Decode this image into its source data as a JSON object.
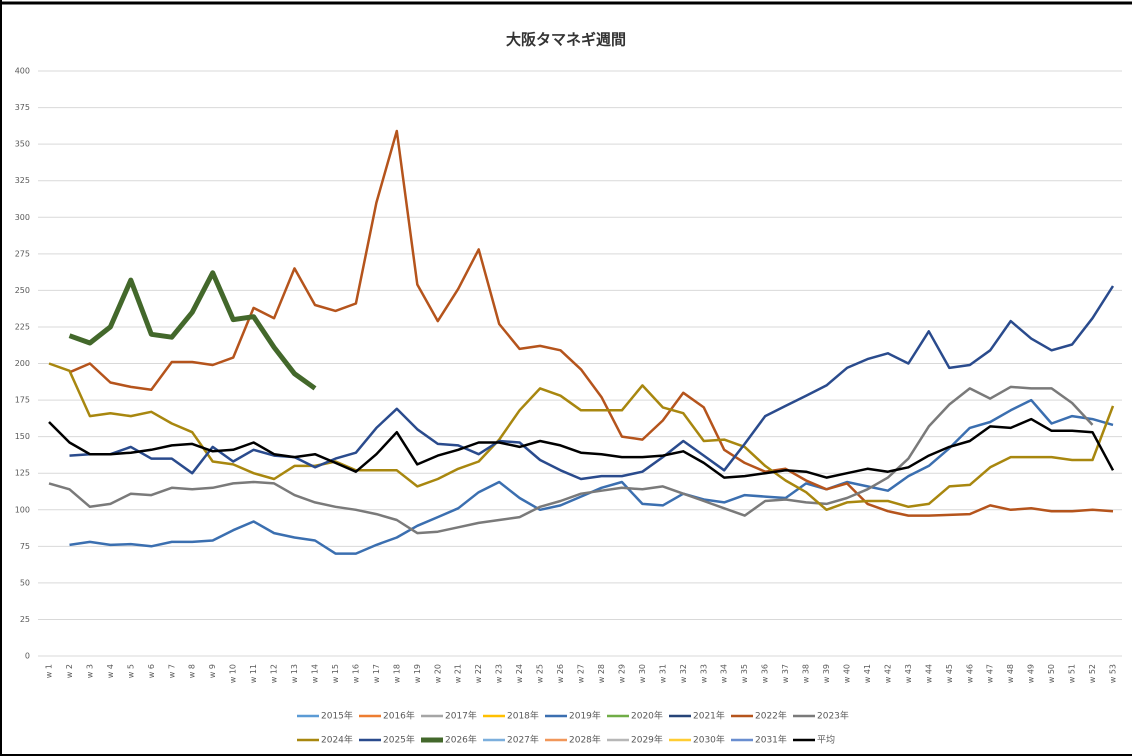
{
  "chart_data": {
    "type": "line",
    "title": "大阪タマネギ週間",
    "categories": [
      "w 1",
      "w 2",
      "w 3",
      "w 4",
      "w 5",
      "w 6",
      "w 7",
      "w 8",
      "w 9",
      "w 10",
      "w 11",
      "w 12",
      "w 13",
      "w 14",
      "w 15",
      "w 16",
      "w 17",
      "w 18",
      "w 19",
      "w 20",
      "w 21",
      "w 22",
      "w 23",
      "w 24",
      "w 25",
      "w 26",
      "w 27",
      "w 28",
      "w 29",
      "w 30",
      "w 31",
      "w 32",
      "w 33",
      "w 34",
      "w 35",
      "w 36",
      "w 37",
      "w 38",
      "w 39",
      "w 40",
      "w 41",
      "w 42",
      "w 43",
      "w 44",
      "w 45",
      "w 46",
      "w 47",
      "w 48",
      "w 49",
      "w 50",
      "w 51",
      "w 52",
      "w 53"
    ],
    "ylim": [
      0,
      400
    ],
    "yticks": [
      0,
      25,
      50,
      75,
      100,
      125,
      150,
      175,
      200,
      225,
      250,
      275,
      300,
      325,
      350,
      375,
      400
    ],
    "grid": true,
    "series": [
      {
        "name": "2015年",
        "color": "#5b9bd5",
        "width": 2.5,
        "values": [
          null,
          null,
          null,
          null,
          null,
          null,
          null,
          null,
          null,
          null,
          null,
          null,
          null,
          null,
          null,
          null,
          null,
          null,
          null,
          null,
          null,
          null,
          null,
          null,
          null,
          null,
          null,
          null,
          null,
          null,
          null,
          null,
          null,
          null,
          null,
          null,
          null,
          null,
          null,
          null,
          null,
          null,
          null,
          null,
          null,
          null,
          null,
          null,
          null,
          null,
          null,
          null,
          null
        ]
      },
      {
        "name": "2016年",
        "color": "#ed7d31",
        "width": 2.5,
        "values": [
          null,
          null,
          null,
          null,
          null,
          null,
          null,
          null,
          null,
          null,
          null,
          null,
          null,
          null,
          null,
          null,
          null,
          null,
          null,
          null,
          null,
          null,
          null,
          null,
          null,
          null,
          null,
          null,
          null,
          null,
          null,
          null,
          null,
          null,
          null,
          null,
          null,
          null,
          null,
          null,
          null,
          null,
          null,
          null,
          null,
          null,
          null,
          null,
          null,
          null,
          null,
          null,
          null
        ]
      },
      {
        "name": "2017年",
        "color": "#a5a5a5",
        "width": 2.5,
        "values": [
          null,
          null,
          null,
          null,
          null,
          null,
          null,
          null,
          null,
          null,
          null,
          null,
          null,
          null,
          null,
          null,
          null,
          null,
          null,
          null,
          null,
          null,
          null,
          null,
          null,
          null,
          null,
          null,
          null,
          null,
          null,
          null,
          null,
          null,
          null,
          null,
          null,
          null,
          null,
          null,
          null,
          null,
          null,
          null,
          null,
          null,
          null,
          null,
          null,
          null,
          null,
          null,
          null
        ]
      },
      {
        "name": "2018年",
        "color": "#ffc000",
        "width": 2.5,
        "values": [
          null,
          null,
          null,
          null,
          null,
          null,
          null,
          null,
          null,
          null,
          null,
          null,
          null,
          null,
          null,
          null,
          null,
          null,
          null,
          null,
          null,
          null,
          null,
          null,
          null,
          null,
          null,
          null,
          null,
          null,
          null,
          null,
          null,
          null,
          null,
          null,
          null,
          null,
          null,
          null,
          null,
          null,
          null,
          null,
          null,
          null,
          null,
          null,
          null,
          null,
          null,
          null,
          null
        ]
      },
      {
        "name": "2019年",
        "color": "#3b6fb0",
        "width": 2.5,
        "values": [
          null,
          76,
          78,
          76,
          76.5,
          75,
          78,
          78,
          79,
          86,
          92,
          84,
          81,
          79,
          70,
          70,
          76,
          81,
          89,
          95,
          101,
          112,
          119,
          108,
          100,
          103,
          109,
          115,
          119,
          104,
          103,
          111,
          107,
          105,
          110,
          109,
          108,
          118,
          114,
          119,
          116,
          113,
          123,
          130,
          142,
          156,
          160,
          168,
          175,
          159,
          164,
          162,
          158
        ]
      },
      {
        "name": "2020年",
        "color": "#70ad47",
        "width": 2.5,
        "values": [
          null,
          null,
          null,
          null,
          null,
          null,
          null,
          null,
          null,
          null,
          null,
          null,
          null,
          null,
          null,
          null,
          null,
          null,
          null,
          null,
          null,
          null,
          null,
          null,
          null,
          null,
          null,
          null,
          null,
          null,
          null,
          null,
          null,
          null,
          null,
          null,
          null,
          null,
          null,
          null,
          null,
          null,
          null,
          null,
          null,
          null,
          null,
          null,
          null,
          null,
          null,
          null,
          null
        ]
      },
      {
        "name": "2021年",
        "color": "#264478",
        "width": 2.5,
        "values": [
          null,
          null,
          null,
          null,
          null,
          null,
          null,
          null,
          null,
          null,
          null,
          null,
          null,
          null,
          null,
          null,
          null,
          null,
          null,
          null,
          null,
          null,
          null,
          null,
          null,
          null,
          null,
          null,
          null,
          null,
          null,
          null,
          null,
          null,
          null,
          null,
          null,
          null,
          null,
          null,
          null,
          null,
          null,
          null,
          null,
          null,
          null,
          null,
          null,
          null,
          null,
          null,
          null
        ]
      },
      {
        "name": "2022年",
        "color": "#b5541c",
        "width": 2.5,
        "values": [
          null,
          194,
          200,
          187,
          184,
          182,
          201,
          201,
          199,
          204,
          238,
          231,
          265,
          240,
          236,
          241,
          310,
          359,
          254,
          229,
          251,
          278,
          227,
          210,
          212,
          209,
          196,
          177,
          150,
          148,
          161,
          180,
          170,
          141,
          132,
          126,
          128,
          120,
          114,
          118,
          104,
          99,
          96,
          96,
          96.5,
          97,
          103,
          100,
          101,
          99,
          99,
          100,
          99
        ]
      },
      {
        "name": "2023年",
        "color": "#7a7a7a",
        "width": 2.5,
        "values": [
          118,
          114,
          102,
          104,
          111,
          110,
          115,
          114,
          115,
          118,
          119,
          118,
          110,
          105,
          102,
          100,
          97,
          93,
          84,
          85,
          88,
          91,
          93,
          95,
          102,
          106,
          111,
          113,
          115,
          114,
          116,
          111,
          106,
          101,
          96,
          106,
          107,
          105,
          104,
          108,
          114,
          122,
          135,
          157,
          172,
          183,
          176,
          184,
          183,
          183,
          173,
          158,
          null
        ]
      },
      {
        "name": "2024年",
        "color": "#a8870f",
        "width": 2.5,
        "values": [
          200,
          195,
          164,
          166,
          164,
          167,
          159,
          153,
          133,
          131,
          125,
          121,
          130,
          130,
          133,
          127,
          127,
          127,
          116,
          121,
          128,
          133,
          148,
          168,
          183,
          178,
          168,
          168,
          168,
          185,
          170,
          166,
          147,
          148,
          143,
          130,
          120,
          112,
          100,
          105,
          106,
          106,
          102,
          104,
          116,
          117,
          129,
          136,
          136,
          136,
          134,
          134,
          171
        ]
      },
      {
        "name": "2025年",
        "color": "#2a4b8d",
        "width": 2.5,
        "values": [
          null,
          137,
          138,
          138,
          143,
          135,
          135,
          125,
          143,
          133,
          141,
          137,
          136,
          129,
          135,
          139,
          156,
          169,
          155,
          145,
          144,
          138,
          147,
          146,
          134,
          127,
          121,
          123,
          123,
          126,
          136,
          147,
          137,
          127,
          145,
          164,
          171,
          178,
          185,
          197,
          203,
          207,
          200,
          222,
          197,
          199,
          209,
          229,
          217,
          209,
          213,
          231,
          253
        ]
      },
      {
        "name": "2026年",
        "color": "#43682b",
        "width": 5,
        "values": [
          null,
          219,
          214,
          225,
          257,
          220,
          218,
          235,
          262,
          230,
          232,
          211,
          193,
          183,
          null,
          null,
          null,
          null,
          null,
          null,
          null,
          null,
          null,
          null,
          null,
          null,
          null,
          null,
          null,
          null,
          null,
          null,
          null,
          null,
          null,
          null,
          null,
          null,
          null,
          null,
          null,
          null,
          null,
          null,
          null,
          null,
          null,
          null,
          null,
          null,
          null,
          null,
          null
        ]
      },
      {
        "name": "2027年",
        "color": "#7cafdd",
        "width": 2.5,
        "values": [
          null,
          null,
          null,
          null,
          null,
          null,
          null,
          null,
          null,
          null,
          null,
          null,
          null,
          null,
          null,
          null,
          null,
          null,
          null,
          null,
          null,
          null,
          null,
          null,
          null,
          null,
          null,
          null,
          null,
          null,
          null,
          null,
          null,
          null,
          null,
          null,
          null,
          null,
          null,
          null,
          null,
          null,
          null,
          null,
          null,
          null,
          null,
          null,
          null,
          null,
          null,
          null,
          null
        ]
      },
      {
        "name": "2028年",
        "color": "#f1975a",
        "width": 2.5,
        "values": [
          null,
          null,
          null,
          null,
          null,
          null,
          null,
          null,
          null,
          null,
          null,
          null,
          null,
          null,
          null,
          null,
          null,
          null,
          null,
          null,
          null,
          null,
          null,
          null,
          null,
          null,
          null,
          null,
          null,
          null,
          null,
          null,
          null,
          null,
          null,
          null,
          null,
          null,
          null,
          null,
          null,
          null,
          null,
          null,
          null,
          null,
          null,
          null,
          null,
          null,
          null,
          null,
          null
        ]
      },
      {
        "name": "2029年",
        "color": "#b7b7b7",
        "width": 2.5,
        "values": [
          null,
          null,
          null,
          null,
          null,
          null,
          null,
          null,
          null,
          null,
          null,
          null,
          null,
          null,
          null,
          null,
          null,
          null,
          null,
          null,
          null,
          null,
          null,
          null,
          null,
          null,
          null,
          null,
          null,
          null,
          null,
          null,
          null,
          null,
          null,
          null,
          null,
          null,
          null,
          null,
          null,
          null,
          null,
          null,
          null,
          null,
          null,
          null,
          null,
          null,
          null,
          null,
          null
        ]
      },
      {
        "name": "2030年",
        "color": "#ffcd33",
        "width": 2.5,
        "values": [
          null,
          null,
          null,
          null,
          null,
          null,
          null,
          null,
          null,
          null,
          null,
          null,
          null,
          null,
          null,
          null,
          null,
          null,
          null,
          null,
          null,
          null,
          null,
          null,
          null,
          null,
          null,
          null,
          null,
          null,
          null,
          null,
          null,
          null,
          null,
          null,
          null,
          null,
          null,
          null,
          null,
          null,
          null,
          null,
          null,
          null,
          null,
          null,
          null,
          null,
          null,
          null,
          null
        ]
      },
      {
        "name": "2031年",
        "color": "#698ed0",
        "width": 2.5,
        "values": [
          null,
          null,
          null,
          null,
          null,
          null,
          null,
          null,
          null,
          null,
          null,
          null,
          null,
          null,
          null,
          null,
          null,
          null,
          null,
          null,
          null,
          null,
          null,
          null,
          null,
          null,
          null,
          null,
          null,
          null,
          null,
          null,
          null,
          null,
          null,
          null,
          null,
          null,
          null,
          null,
          null,
          null,
          null,
          null,
          null,
          null,
          null,
          null,
          null,
          null,
          null,
          null,
          null
        ]
      },
      {
        "name": "平均",
        "color": "#000000",
        "width": 2.5,
        "values": [
          160,
          146,
          138,
          138,
          139,
          141,
          144,
          145,
          140,
          141,
          146,
          138,
          136,
          138,
          132,
          126,
          138,
          153,
          131,
          137,
          141,
          146,
          146,
          143,
          147,
          144,
          139,
          138,
          136,
          136,
          137,
          140,
          132,
          122,
          123,
          125,
          127,
          126,
          122,
          125,
          128,
          126,
          129,
          137,
          143,
          147,
          157,
          156,
          162,
          154,
          154,
          153,
          127
        ]
      }
    ]
  }
}
